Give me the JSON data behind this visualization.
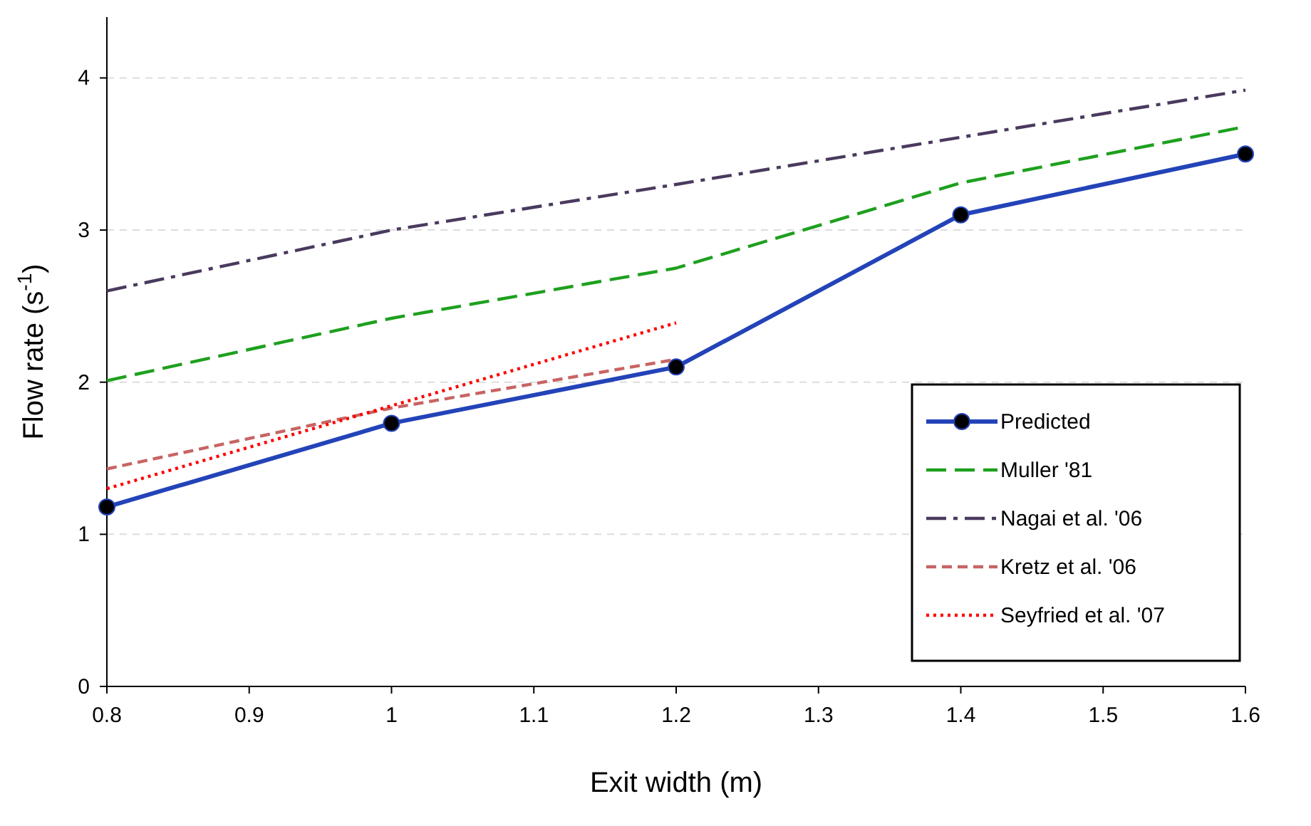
{
  "chart_data": {
    "type": "line",
    "xlabel": "Exit width (m)",
    "ylabel": "Flow rate (s$^{-1}$)",
    "xlim": [
      0.8,
      1.6
    ],
    "xticks": [
      0.8,
      0.9,
      1,
      1.1,
      1.2,
      1.3,
      1.4,
      1.5,
      1.6
    ],
    "ylim": [
      0,
      4.4
    ],
    "yticks": [
      0,
      1,
      2,
      3,
      4
    ],
    "grid": "y",
    "legend": "bottom right",
    "series": [
      {
        "name": "Predicted",
        "color": "#2343b8",
        "x": [
          0.8,
          1,
          1.2,
          1.4,
          1.6
        ],
        "values": [
          1.18,
          1.73,
          2.1,
          3.1,
          3.5
        ],
        "marker": "circle",
        "line_style": "solid"
      },
      {
        "name": "Muller '81",
        "color": "#1ea01e",
        "x": [
          0.8,
          1,
          1.2,
          1.4,
          1.6
        ],
        "values": [
          2.01,
          2.42,
          2.75,
          3.31,
          3.68
        ],
        "marker": "none",
        "line_style": "longdash"
      },
      {
        "name": "Nagai et al. '06",
        "color": "#4a3a5e",
        "x": [
          0.8,
          1,
          1.2,
          1.4,
          1.6
        ],
        "values": [
          2.6,
          3.0,
          3.3,
          3.61,
          3.92
        ],
        "marker": "none",
        "line_style": "dashdot"
      },
      {
        "name": "Kretz et al. '06",
        "color": "#c86464",
        "x": [
          0.8,
          1,
          1.2
        ],
        "values": [
          1.43,
          1.83,
          2.15
        ],
        "marker": "none",
        "line_style": "dashed"
      },
      {
        "name": "Seyfried et al. '07",
        "color": "#ff0000",
        "x": [
          0.8,
          1.2
        ],
        "values": [
          1.3,
          2.39
        ],
        "marker": "none",
        "line_style": "dotted"
      }
    ]
  }
}
